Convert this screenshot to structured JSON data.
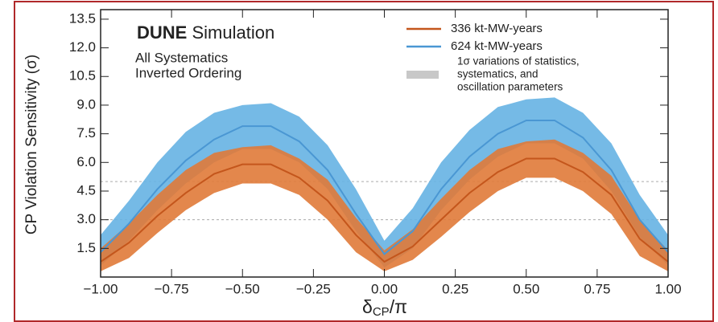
{
  "chart_data": {
    "type": "band-line",
    "experiment": "DUNE",
    "title": "Simulation",
    "annotations": [
      "All Systematics",
      "Inverted Ordering"
    ],
    "ylabel": "CP Violation Sensitivity (σ)",
    "xlabel": {
      "symbol": "δ",
      "subscript": "CP",
      "suffix": "/π"
    },
    "band_legend": [
      "1σ variations of statistics,",
      "systematics, and",
      "oscillation parameters"
    ],
    "band_legend_color": "#c8c8c8",
    "x": [
      -1,
      -0.9,
      -0.8,
      -0.7,
      -0.6,
      -0.5,
      -0.4,
      -0.3,
      -0.2,
      -0.1,
      0,
      0.1,
      0.2,
      0.3,
      0.4,
      0.5,
      0.6,
      0.7,
      0.8,
      0.9,
      1
    ],
    "series": [
      {
        "name": "624 kt-MW-years",
        "color": "#4a97d3",
        "band_color": "#66b3e3",
        "values": [
          1.3,
          2.8,
          4.6,
          6.1,
          7.2,
          7.9,
          7.9,
          7.1,
          5.6,
          3.3,
          1.2,
          2.4,
          4.6,
          6.3,
          7.5,
          8.2,
          8.2,
          7.3,
          5.6,
          3.0,
          1.3
        ],
        "band_high": [
          2.2,
          4.0,
          6.0,
          7.6,
          8.6,
          9.0,
          9.1,
          8.4,
          6.9,
          4.6,
          1.9,
          3.6,
          6.0,
          7.7,
          8.9,
          9.3,
          9.4,
          8.6,
          7.0,
          4.3,
          2.2
        ],
        "band_low": [
          0.6,
          1.9,
          3.5,
          4.9,
          6.0,
          6.7,
          6.7,
          6.0,
          4.6,
          2.4,
          0.5,
          1.5,
          3.5,
          5.1,
          6.3,
          7.0,
          7.0,
          6.2,
          4.5,
          2.1,
          0.6
        ]
      },
      {
        "name": "336 kt-MW-years",
        "color": "#c4561c",
        "band_color": "#e07a38",
        "values": [
          0.8,
          1.8,
          3.2,
          4.4,
          5.4,
          5.9,
          5.9,
          5.2,
          4.0,
          2.2,
          0.8,
          1.6,
          3.0,
          4.4,
          5.5,
          6.2,
          6.2,
          5.5,
          4.3,
          2.0,
          0.8
        ],
        "band_high": [
          1.5,
          2.8,
          4.3,
          5.6,
          6.5,
          6.8,
          6.9,
          6.2,
          5.1,
          3.1,
          1.4,
          2.5,
          4.1,
          5.6,
          6.7,
          7.1,
          7.2,
          6.5,
          5.3,
          3.0,
          1.4
        ],
        "band_low": [
          0.3,
          1.0,
          2.3,
          3.5,
          4.4,
          4.9,
          4.9,
          4.3,
          3.0,
          1.3,
          0.3,
          0.9,
          2.1,
          3.4,
          4.5,
          5.2,
          5.2,
          4.5,
          3.3,
          1.1,
          0.3
        ]
      }
    ],
    "legend_order": [
      1,
      0
    ],
    "reference_lines": [
      3,
      5
    ],
    "xlim": [
      -1,
      1
    ],
    "ylim": [
      0,
      14
    ],
    "xticks": [
      {
        "value": -1,
        "label": "−1.00"
      },
      {
        "value": -0.75,
        "label": "−0.75"
      },
      {
        "value": -0.5,
        "label": "−0.50"
      },
      {
        "value": -0.25,
        "label": "−0.25"
      },
      {
        "value": 0,
        "label": "0.00"
      },
      {
        "value": 0.25,
        "label": "0.25"
      },
      {
        "value": 0.5,
        "label": "0.50"
      },
      {
        "value": 0.75,
        "label": "0.75"
      },
      {
        "value": 1,
        "label": "1.00"
      }
    ],
    "yticks": [
      1.5,
      {
        "value": 3,
        "label": "3.0"
      },
      4.5,
      {
        "value": 6,
        "label": "6.0"
      },
      7.5,
      {
        "value": 9,
        "label": "9.0"
      },
      10.5,
      {
        "value": 12,
        "label": "12.0"
      },
      13.5
    ]
  }
}
